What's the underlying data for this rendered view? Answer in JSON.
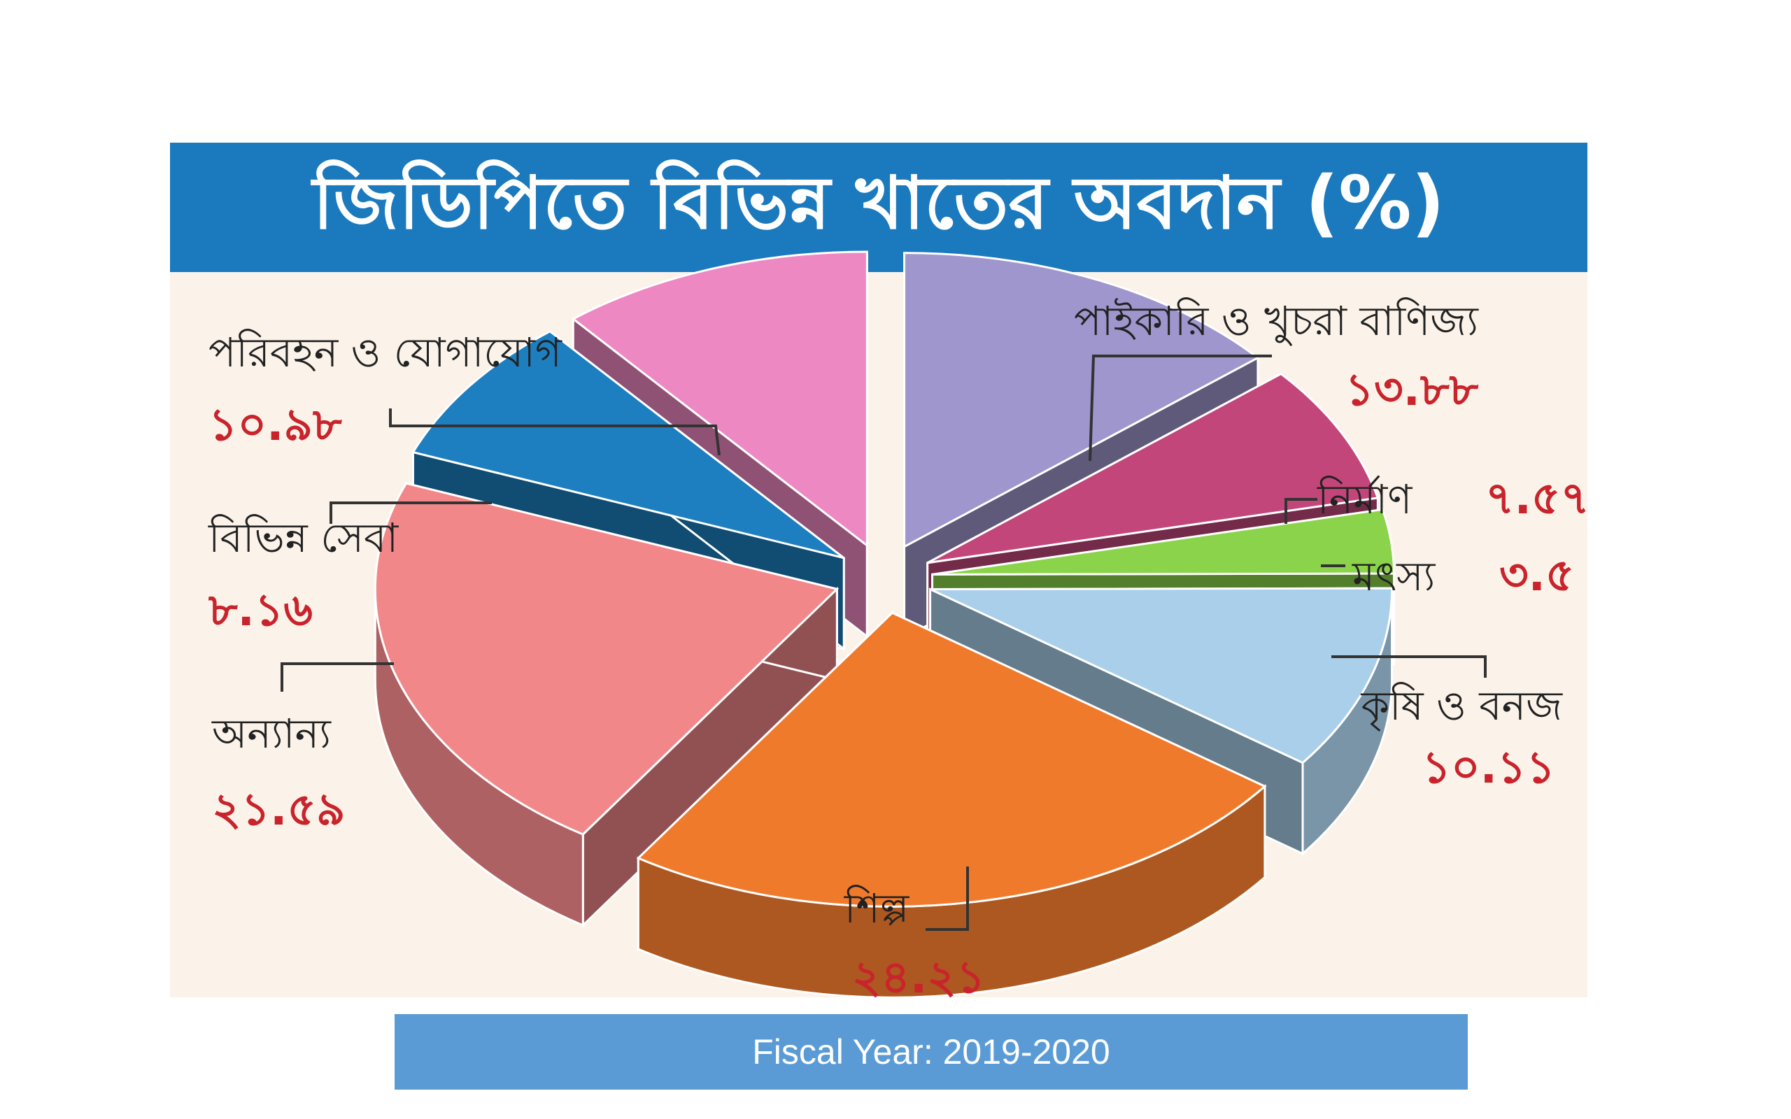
{
  "chart_data": {
    "type": "pie",
    "title": "জিডিপিতে বিভিন্ন খাতের অবদান (%)",
    "slices": [
      {
        "name": "পাইকারি ও খুচরা বাণিজ্য",
        "value": 13.88,
        "label": "১৩.৮৮",
        "color": "#9e96cc"
      },
      {
        "name": "নির্মাণ",
        "value": 7.57,
        "label": "৭.৫৭",
        "color": "#c2467a"
      },
      {
        "name": "মৎস্য",
        "value": 3.5,
        "label": "৩.৫",
        "color": "#8bd34a"
      },
      {
        "name": "কৃষি ও বনজ",
        "value": 10.11,
        "label": "১০.১১",
        "color": "#a9cfea"
      },
      {
        "name": "শিল্প",
        "value": 24.21,
        "label": "২৪.২১",
        "color": "#f07a2c"
      },
      {
        "name": "অন্যান্য",
        "value": 21.59,
        "label": "২১.৫৯",
        "color": "#f2878a"
      },
      {
        "name": "বিভিন্ন সেবা",
        "value": 8.16,
        "label": "৮.১৬",
        "color": "#1d7fc0"
      },
      {
        "name": "পরিবহন ও যোগাযোগ",
        "value": 10.98,
        "label": "১০.৯৮",
        "color": "#ee88c2"
      }
    ]
  },
  "footer": {
    "text": "Fiscal Year: 2019-2020"
  }
}
